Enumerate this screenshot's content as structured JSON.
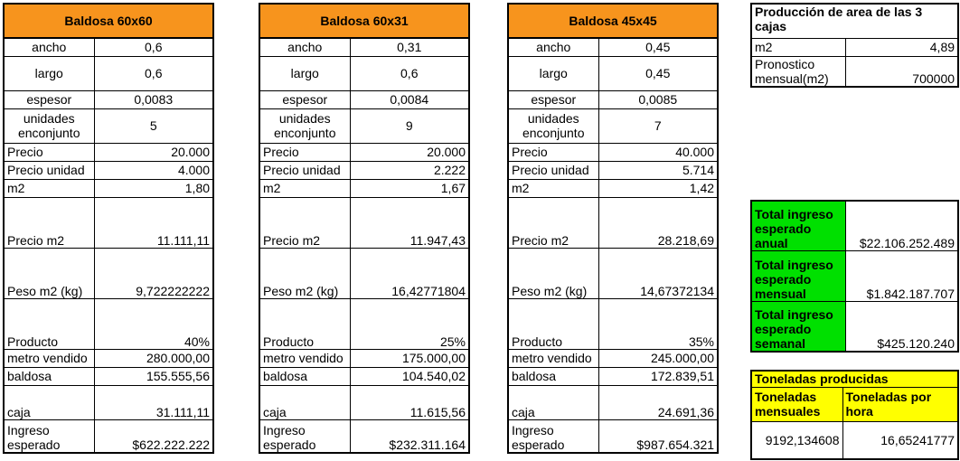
{
  "tables": [
    {
      "title": "Baldosa 60x60",
      "ancho": "0,6",
      "largo": "0,6",
      "espesor": "0,0083",
      "unidades": "5",
      "precio": "20.000",
      "precio_unidad": "4.000",
      "m2": "1,80",
      "precio_m2": "11.111,11",
      "peso_m2": "9,722222222",
      "producto": "40%",
      "metro_vendido": "280.000,00",
      "baldosa": "155.555,56",
      "caja": "31.111,11",
      "ingreso": "$622.222.222"
    },
    {
      "title": "Baldosa 60x31",
      "ancho": "0,31",
      "largo": "0,6",
      "espesor": "0,0084",
      "unidades": "9",
      "precio": "20.000",
      "precio_unidad": "2.222",
      "m2": "1,67",
      "precio_m2": "11.947,43",
      "peso_m2": "16,42771804",
      "producto": "25%",
      "metro_vendido": "175.000,00",
      "baldosa": "104.540,02",
      "caja": "11.615,56",
      "ingreso": "$232.311.164"
    },
    {
      "title": "Baldosa 45x45",
      "ancho": "0,45",
      "largo": "0,45",
      "espesor": "0,0085",
      "unidades": "7",
      "precio": "40.000",
      "precio_unidad": "5.714",
      "m2": "1,42",
      "precio_m2": "28.218,69",
      "peso_m2": "14,67372134",
      "producto": "35%",
      "metro_vendido": "245.000,00",
      "baldosa": "172.839,51",
      "caja": "24.691,36",
      "ingreso": "$987.654.321"
    }
  ],
  "labels": {
    "ancho": "ancho",
    "largo": "largo",
    "espesor": "espesor",
    "unidades": "unidades enconjunto",
    "precio": "Precio",
    "precio_unidad": "Precio unidad",
    "m2": "m2",
    "precio_m2": "Precio m2",
    "peso_m2": "Peso m2 (kg)",
    "producto": "Producto",
    "metro_vendido": "metro vendido",
    "baldosa": "baldosa",
    "caja": "caja",
    "ingreso": "Ingreso esperado"
  },
  "produccion": {
    "title": "Producción de area de las 3 cajas",
    "m2_label": "m2",
    "m2_value": "4,89",
    "pronostico_label": "Pronostico mensual(m2)",
    "pronostico_value": "700000"
  },
  "ingresos": {
    "anual_label": "Total ingreso esperado anual",
    "anual_value": "$22.106.252.489",
    "mensual_label": "Total ingreso esperado mensual",
    "mensual_value": "$1.842.187.707",
    "semanal_label": "Total ingreso esperado semanal",
    "semanal_value": "$425.120.240"
  },
  "toneladas": {
    "title": "Toneladas producidas",
    "mensuales_label": "Toneladas mensuales",
    "hora_label": "Toneladas por hora",
    "mensuales_value": "9192,134608",
    "hora_value": "16,65241777"
  },
  "colors": {
    "header": "#f7941d",
    "green": "#00e000",
    "yellow": "#ffff00"
  }
}
